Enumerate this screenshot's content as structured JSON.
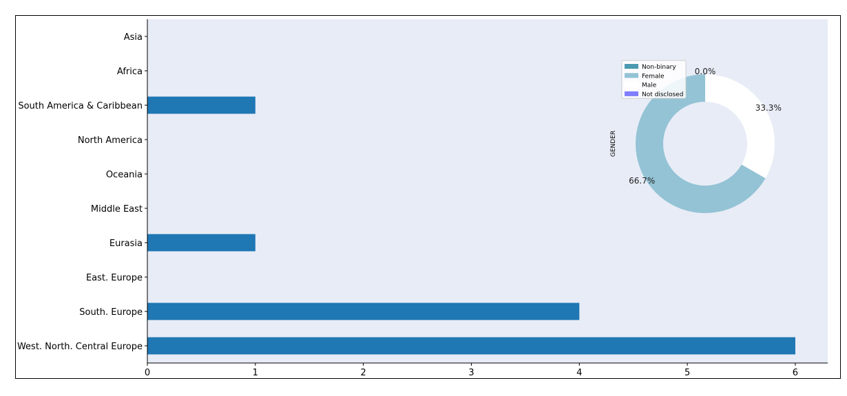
{
  "chart_data": [
    {
      "type": "bar",
      "orientation": "horizontal",
      "categories": [
        "Asia",
        "Africa",
        "South America & Caribbean",
        "North America",
        "Oceania",
        "Middle East",
        "Eurasia",
        "East. Europe",
        "South. Europe",
        "West. North. Central Europe"
      ],
      "values": [
        0,
        0,
        1,
        0,
        0,
        0,
        1,
        0,
        4,
        6
      ],
      "xlim": [
        0,
        6.3
      ],
      "xticks": [
        "0",
        "1",
        "2",
        "3",
        "4",
        "5",
        "6"
      ],
      "bar_color": "#1f77b4",
      "background": "#e8ecf6",
      "grid": false
    },
    {
      "type": "pie",
      "donut": true,
      "ylabel": "GENDER",
      "legend": [
        "Non-binary",
        "Female",
        "Male",
        "Not disclosed"
      ],
      "legend_placement": "top-left",
      "colors": [
        "#4a9ab0",
        "#93c3d5",
        "#ffffff",
        "#7f7fff"
      ],
      "slices": [
        {
          "name": "Male",
          "value": 33.3,
          "label": "33.3%"
        },
        {
          "name": "Female",
          "value": 66.7,
          "label": "66.7%"
        },
        {
          "name": "Non-binary",
          "value": 0.0,
          "label": "0.0%"
        }
      ]
    }
  ]
}
